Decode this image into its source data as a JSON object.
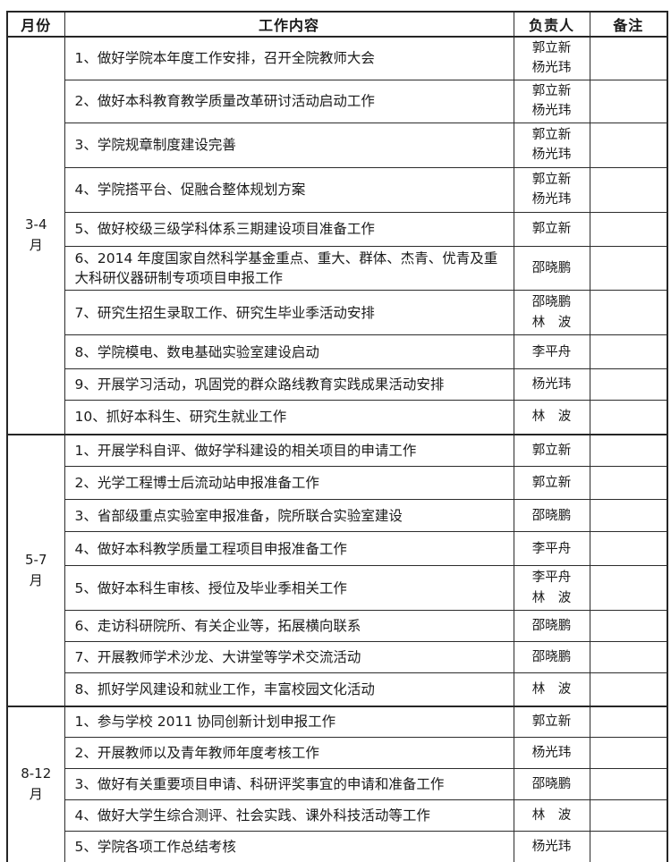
{
  "table": {
    "headers": {
      "month": "月份",
      "content": "工作内容",
      "person": "负责人",
      "remark": "备注"
    },
    "groups": [
      {
        "month": "3-4\n月",
        "rows": [
          {
            "content": "1、做好学院本年度工作安排，召开全院教师大会",
            "person": "郭立新\n杨光玮",
            "remark": ""
          },
          {
            "content": "2、做好本科教育教学质量改革研讨活动启动工作",
            "person": "郭立新\n杨光玮",
            "remark": ""
          },
          {
            "content": "3、学院规章制度建设完善",
            "person": "郭立新\n杨光玮",
            "remark": ""
          },
          {
            "content": "4、学院搭平台、促融合整体规划方案",
            "person": "郭立新\n杨光玮",
            "remark": ""
          },
          {
            "content": "5、做好校级三级学科体系三期建设项目准备工作",
            "person": "郭立新",
            "remark": ""
          },
          {
            "content": "6、2014 年度国家自然科学基金重点、重大、群体、杰青、优青及重大科研仪器研制专项项目申报工作",
            "person": "邵晓鹏",
            "remark": ""
          },
          {
            "content": "7、研究生招生录取工作、研究生毕业季活动安排",
            "person": "邵晓鹏\n林　波",
            "remark": ""
          },
          {
            "content": "8、学院模电、数电基础实验室建设启动",
            "person": "李平舟",
            "remark": ""
          },
          {
            "content": "9、开展学习活动，巩固党的群众路线教育实践成果活动安排",
            "person": "杨光玮",
            "remark": ""
          },
          {
            "content": "10、抓好本科生、研究生就业工作",
            "person": "林　波",
            "remark": ""
          }
        ]
      },
      {
        "month": "5-7\n月",
        "rows": [
          {
            "content": "1、开展学科自评、做好学科建设的相关项目的申请工作",
            "person": "郭立新",
            "remark": ""
          },
          {
            "content": "2、光学工程博士后流动站申报准备工作",
            "person": "郭立新",
            "remark": ""
          },
          {
            "content": "3、省部级重点实验室申报准备，院所联合实验室建设",
            "person": "邵晓鹏",
            "remark": ""
          },
          {
            "content": "4、做好本科教学质量工程项目申报准备工作",
            "person": "李平舟",
            "remark": ""
          },
          {
            "content": "5、做好本科生审核、授位及毕业季相关工作",
            "person": "李平舟\n林　波",
            "remark": ""
          },
          {
            "content": "6、走访科研院所、有关企业等，拓展横向联系",
            "person": "邵晓鹏",
            "remark": ""
          },
          {
            "content": "7、开展教师学术沙龙、大讲堂等学术交流活动",
            "person": "邵晓鹏",
            "remark": ""
          },
          {
            "content": "8、抓好学风建设和就业工作，丰富校园文化活动",
            "person": "林　波",
            "remark": ""
          }
        ]
      },
      {
        "month": "8-12\n月",
        "rows": [
          {
            "content": "1、参与学校 2011 协同创新计划申报工作",
            "person": "郭立新",
            "remark": ""
          },
          {
            "content": "2、开展教师以及青年教师年度考核工作",
            "person": "杨光玮",
            "remark": ""
          },
          {
            "content": "3、做好有关重要项目申请、科研评奖事宜的申请和准备工作",
            "person": "邵晓鹏",
            "remark": ""
          },
          {
            "content": "4、做好大学生综合测评、社会实践、课外科技活动等工作",
            "person": "林　波",
            "remark": ""
          },
          {
            "content": "5、学院各项工作总结考核",
            "person": "杨光玮",
            "remark": ""
          }
        ]
      }
    ]
  }
}
